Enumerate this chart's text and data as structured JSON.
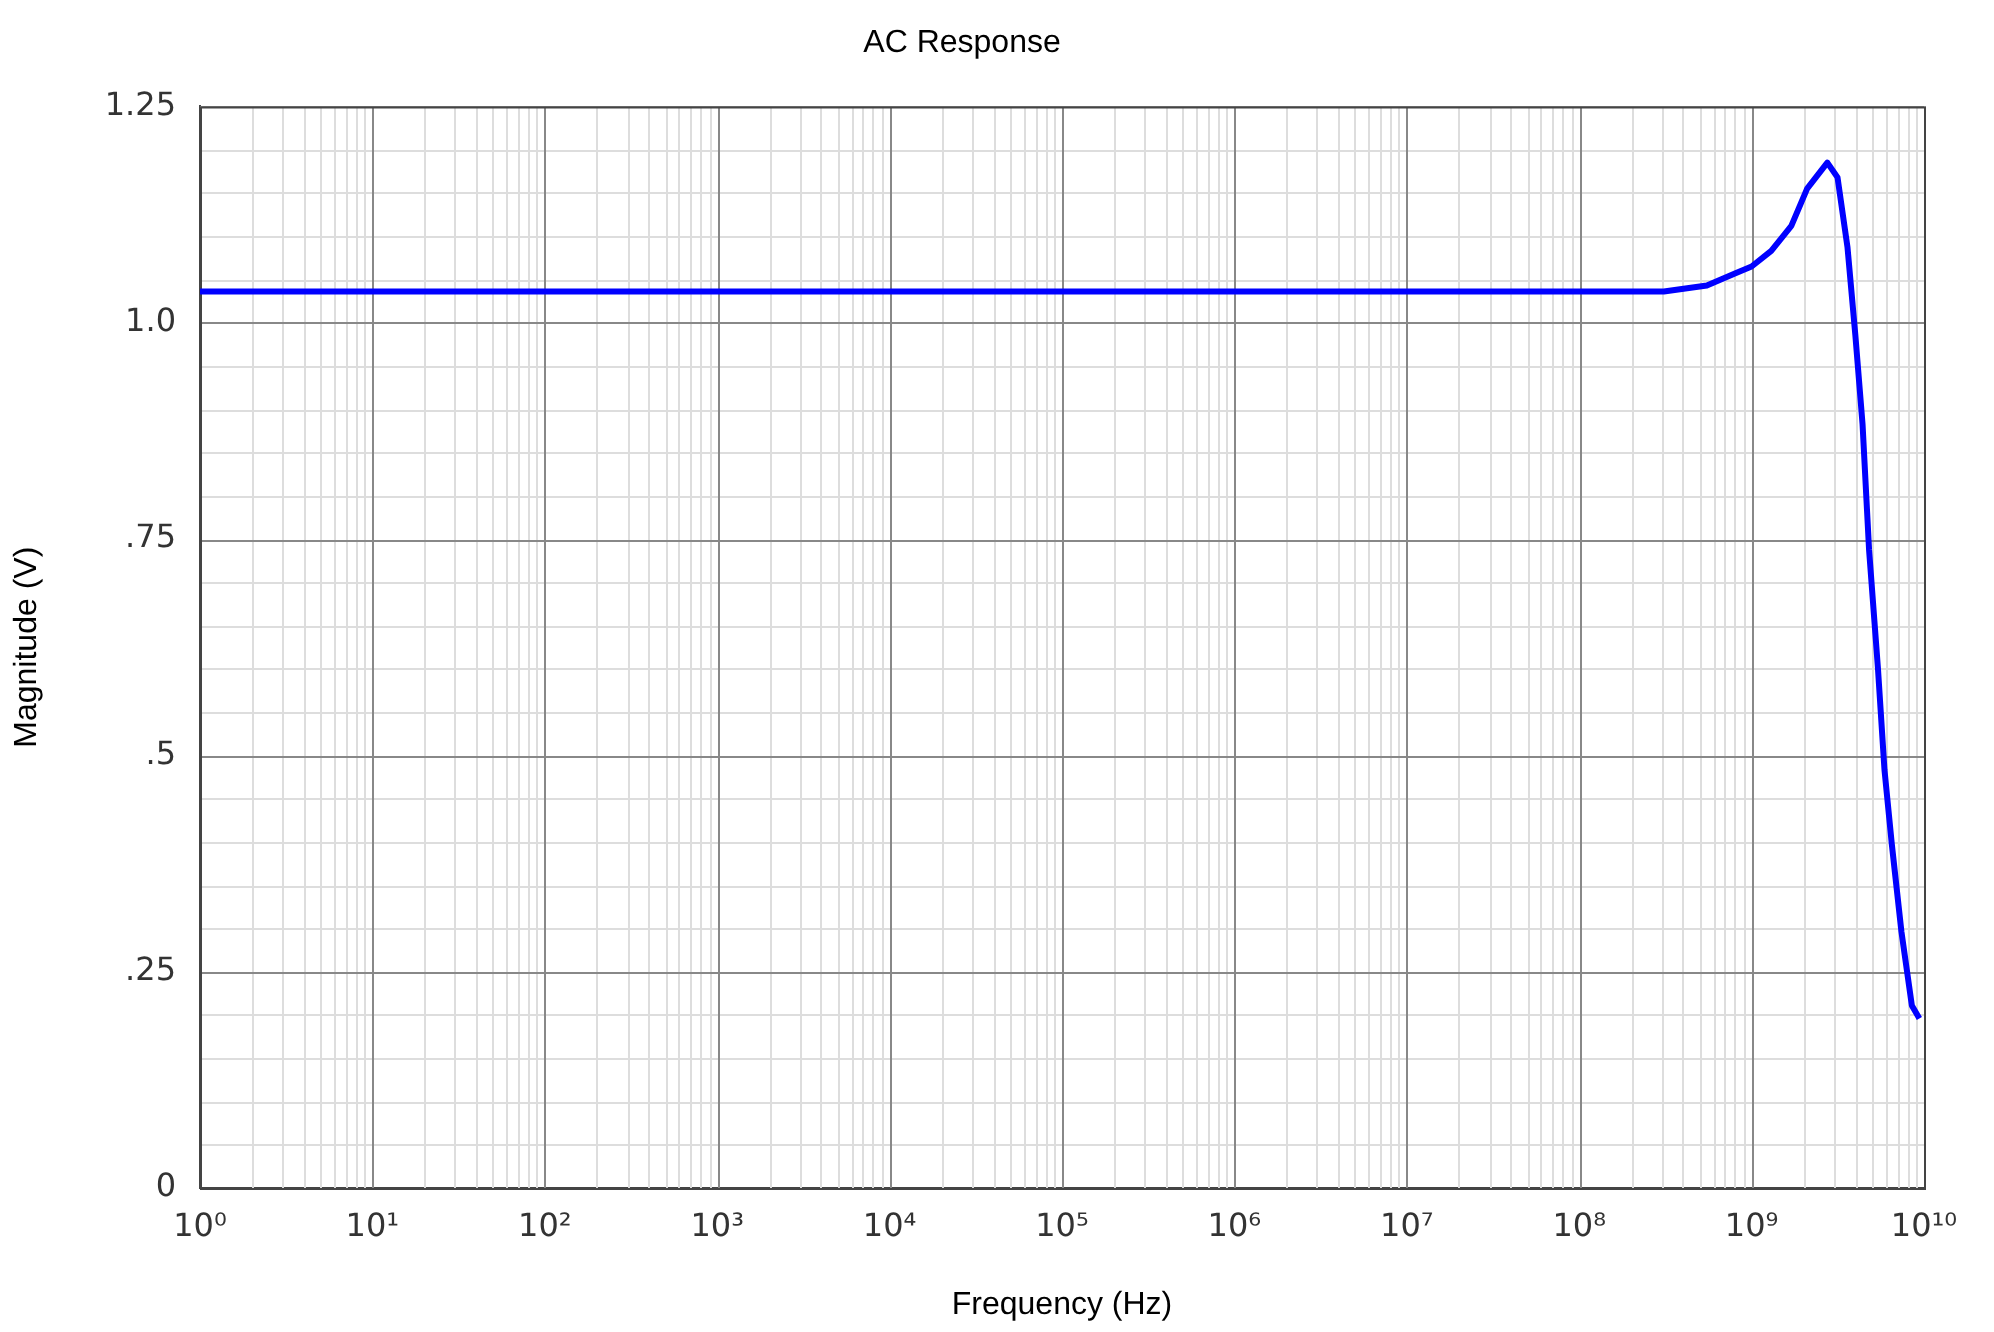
{
  "chart_data": {
    "type": "line",
    "title": "AC Response",
    "xlabel": "Frequency (Hz)",
    "ylabel": "Magnitude (V)",
    "log": "x",
    "grid": true,
    "legend": false,
    "marker": "none",
    "line_style": "solid",
    "x": [
      1,
      100000000,
      310000000,
      550000000,
      800000000,
      1000000000,
      1300000000,
      1700000000,
      2100000000,
      2750000000,
      3150000000,
      3600000000,
      4000000000,
      4400000000,
      4800000000,
      5400000000,
      5900000000,
      6500000000,
      7400000000,
      8500000000,
      9400000000
    ],
    "series": [
      {
        "color": "#0000ff",
        "values": [
          1.036,
          1.036,
          1.036,
          1.043,
          1.057,
          1.065,
          1.083,
          1.112,
          1.155,
          1.185,
          1.168,
          1.087,
          0.985,
          0.883,
          0.738,
          0.602,
          0.483,
          0.398,
          0.296,
          0.211,
          0.196
        ]
      }
    ],
    "xlim": [
      1,
      10000000000
    ],
    "xticks": [
      {
        "value": 1,
        "label": "10⁰"
      },
      {
        "value": 10,
        "label": "10¹"
      },
      {
        "value": 100,
        "label": "10²"
      },
      {
        "value": 1000,
        "label": "10³"
      },
      {
        "value": 10000,
        "label": "10⁴"
      },
      {
        "value": 100000,
        "label": "10⁵"
      },
      {
        "value": 1000000,
        "label": "10⁶"
      },
      {
        "value": 10000000,
        "label": "10⁷"
      },
      {
        "value": 100000000,
        "label": "10⁸"
      },
      {
        "value": 1000000000,
        "label": "10⁹"
      },
      {
        "value": 10000000000,
        "label": "10¹⁰"
      }
    ],
    "ylim": [
      0,
      1.25
    ],
    "yticks": [
      0,
      {
        "value": 0.25,
        "label": ".25"
      },
      {
        "value": 0.5,
        "label": ".5"
      },
      {
        "value": 0.75,
        "label": ".75"
      },
      {
        "value": 1,
        "label": "1.0"
      },
      1.25
    ]
  }
}
